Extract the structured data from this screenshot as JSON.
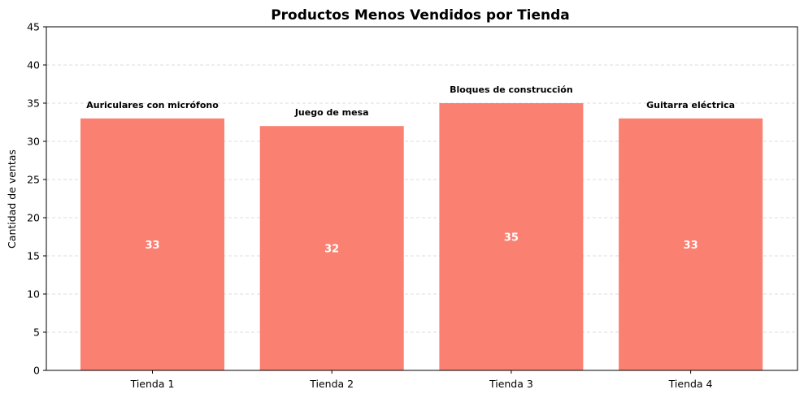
{
  "chart_data": {
    "type": "bar",
    "title": "Productos Menos Vendidos por Tienda",
    "xlabel": "",
    "ylabel": "Cantidad de ventas",
    "categories": [
      "Tienda 1",
      "Tienda 2",
      "Tienda 3",
      "Tienda 4"
    ],
    "values": [
      33,
      32,
      35,
      33
    ],
    "products": [
      "Auriculares con micrófono",
      "Juego de mesa",
      "Bloques de construcción",
      "Guitarra eléctrica"
    ],
    "value_labels": [
      "33",
      "32",
      "35",
      "33"
    ],
    "ylim": [
      0,
      45
    ],
    "yticks": [
      "0",
      "5",
      "10",
      "15",
      "20",
      "25",
      "30",
      "35",
      "40",
      "45"
    ],
    "grid": "horizontal dashed",
    "bar_color": "#fa8072"
  }
}
